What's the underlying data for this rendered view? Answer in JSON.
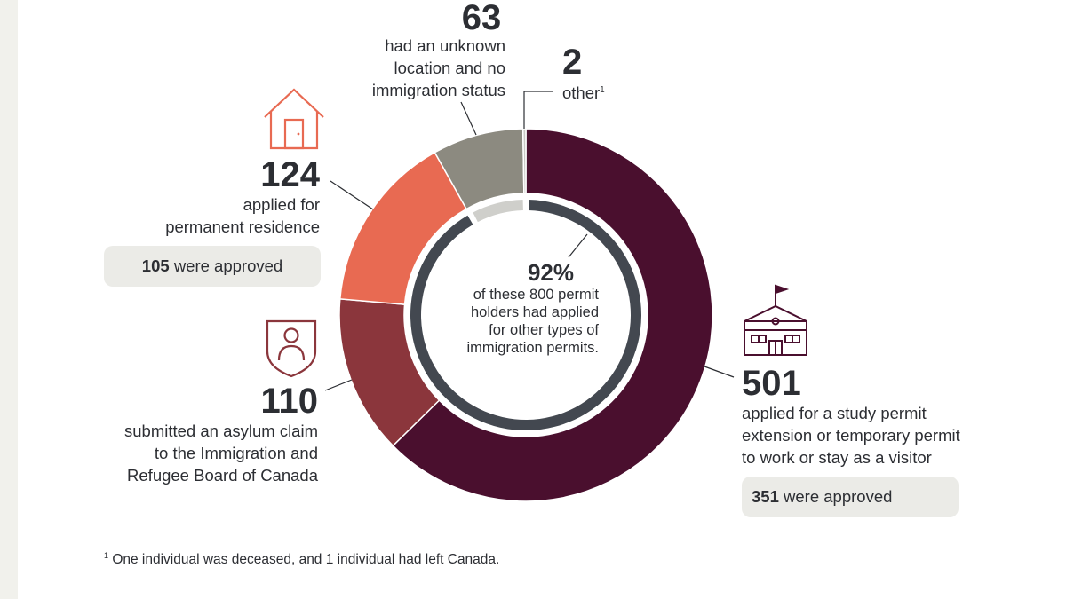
{
  "chart_data": {
    "type": "donut",
    "total": 800,
    "segments": [
      {
        "name": "study-work-visitor",
        "value": 501,
        "color": "#4a0f2e",
        "label": "applied for a study permit extension or temporary permit to work or stay as a visitor",
        "line1": "applied for a study permit",
        "line2": "extension or temporary permit",
        "line3": "to work or stay as a visitor",
        "approved": "351",
        "approved_text": "were approved"
      },
      {
        "name": "asylum",
        "value": 110,
        "color": "#8b363c",
        "line1": "submitted an asylum claim",
        "line2": "to the Immigration and",
        "line3": "Refugee Board of Canada"
      },
      {
        "name": "permanent-residence",
        "value": 124,
        "color": "#e86a52",
        "line1": "applied for",
        "line2": "permanent residence",
        "approved": "105",
        "approved_text": "were approved"
      },
      {
        "name": "unknown",
        "value": 63,
        "color": "#8c8a80",
        "line1": "had an unknown",
        "line2": "location and no",
        "line3": "immigration status"
      },
      {
        "name": "other",
        "value": 2,
        "color": "#c8c8c4",
        "line1": "other",
        "footnote_mark": "1"
      }
    ],
    "inner_ring": {
      "percent": 92,
      "percent_label": "92%",
      "line1": "of these 800 permit",
      "line2": "holders had applied",
      "line3": "for other types of",
      "line4": "immigration permits.",
      "dark_color": "#434850",
      "light_color": "#cfcfcb"
    }
  },
  "footnote": {
    "mark": "1",
    "text": "One individual was deceased, and 1 individual had left Canada."
  },
  "icons": {
    "house": "house-icon",
    "shield_person": "shield-person-icon",
    "school": "school-building-icon"
  }
}
